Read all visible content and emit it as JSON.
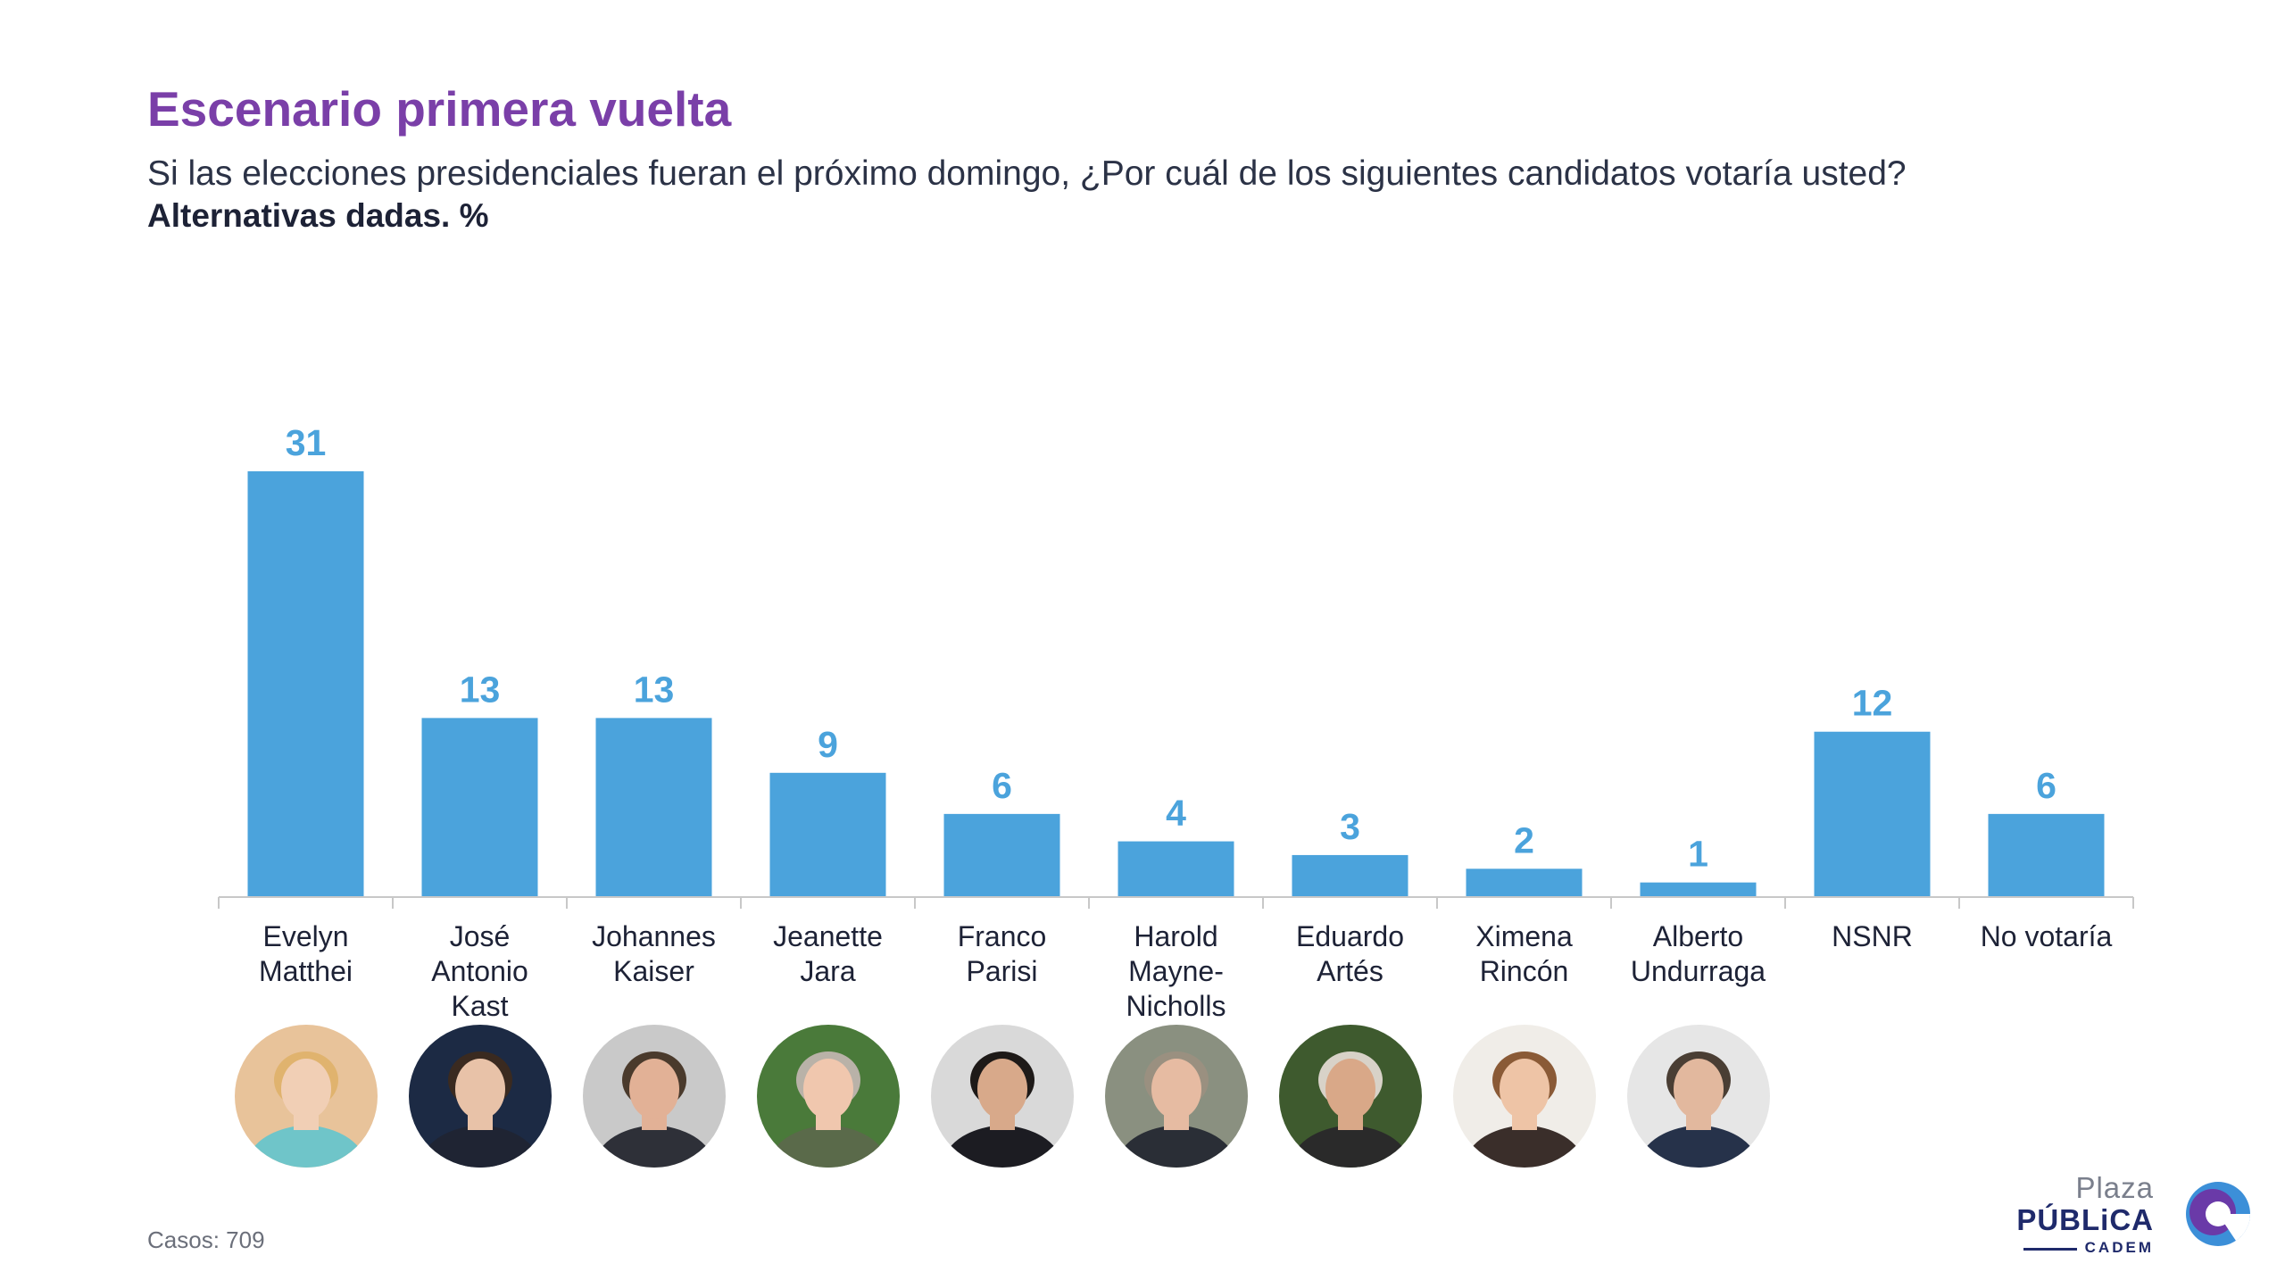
{
  "header": {
    "title": "Escenario primera vuelta",
    "subtitle": "Si las elecciones presidenciales fueran el próximo domingo, ¿Por cuál de los siguientes candidatos votaría usted?",
    "subtitle2": "Alternativas dadas. %"
  },
  "chart_data": {
    "type": "bar",
    "title": "Escenario primera vuelta",
    "xlabel": "",
    "ylabel": "",
    "ylim": [
      0,
      31
    ],
    "grid": false,
    "categories": [
      [
        "Evelyn",
        "Matthei"
      ],
      [
        "José",
        "Antonio",
        "Kast"
      ],
      [
        "Johannes",
        "Kaiser"
      ],
      [
        "Jeanette",
        "Jara"
      ],
      [
        "Franco",
        "Parisi"
      ],
      [
        "Harold",
        "Mayne-",
        "Nicholls"
      ],
      [
        "Eduardo",
        "Artés"
      ],
      [
        "Ximena",
        "Rincón"
      ],
      [
        "Alberto",
        "Undurraga"
      ],
      [
        "NSNR"
      ],
      [
        "No votaría"
      ]
    ],
    "values": [
      31,
      13,
      13,
      9,
      6,
      4,
      3,
      2,
      1,
      12,
      6
    ],
    "bar_color": "#4ba3dc",
    "axis_color": "#c8c8c8"
  },
  "avatars": [
    {
      "name": "evelyn-matthei-photo",
      "bg": "#e8c39a",
      "skin": "#f1cfb5",
      "hair": "#e0b36e",
      "shirt": "#6fc5c9"
    },
    {
      "name": "jose-antonio-kast-photo",
      "bg": "#1c2a44",
      "skin": "#e8c2a8",
      "hair": "#3a2a20",
      "shirt": "#1f2433"
    },
    {
      "name": "johannes-kaiser-photo",
      "bg": "#c9c9c9",
      "skin": "#e2b196",
      "hair": "#4a3a2c",
      "shirt": "#2e3038"
    },
    {
      "name": "jeanette-jara-photo",
      "bg": "#4a7a3a",
      "skin": "#f0c7ae",
      "hair": "#b9b2a8",
      "shirt": "#5a6a4a"
    },
    {
      "name": "franco-parisi-photo",
      "bg": "#d9d9d9",
      "skin": "#d8a98a",
      "hair": "#1e1a18",
      "shirt": "#1c1c22"
    },
    {
      "name": "harold-mayne-nicholls-photo",
      "bg": "#8a9080",
      "skin": "#e6bba2",
      "hair": "#9a9080",
      "shirt": "#2a2e36"
    },
    {
      "name": "eduardo-artes-photo",
      "bg": "#3e5a2e",
      "skin": "#d9a888",
      "hair": "#d8d2c8",
      "shirt": "#2a2a2a"
    },
    {
      "name": "ximena-rincon-photo",
      "bg": "#f0ede8",
      "skin": "#eec4a6",
      "hair": "#8a5a36",
      "shirt": "#3a2e2a"
    },
    {
      "name": "alberto-undurraga-photo",
      "bg": "#e6e6e6",
      "skin": "#e2b89e",
      "hair": "#4a3e34",
      "shirt": "#26324a"
    }
  ],
  "footer": {
    "casos": "Casos: 709"
  },
  "logo": {
    "plaza": "Plaza",
    "publica": "PÚBLiCA",
    "cadem": "CADEM"
  }
}
